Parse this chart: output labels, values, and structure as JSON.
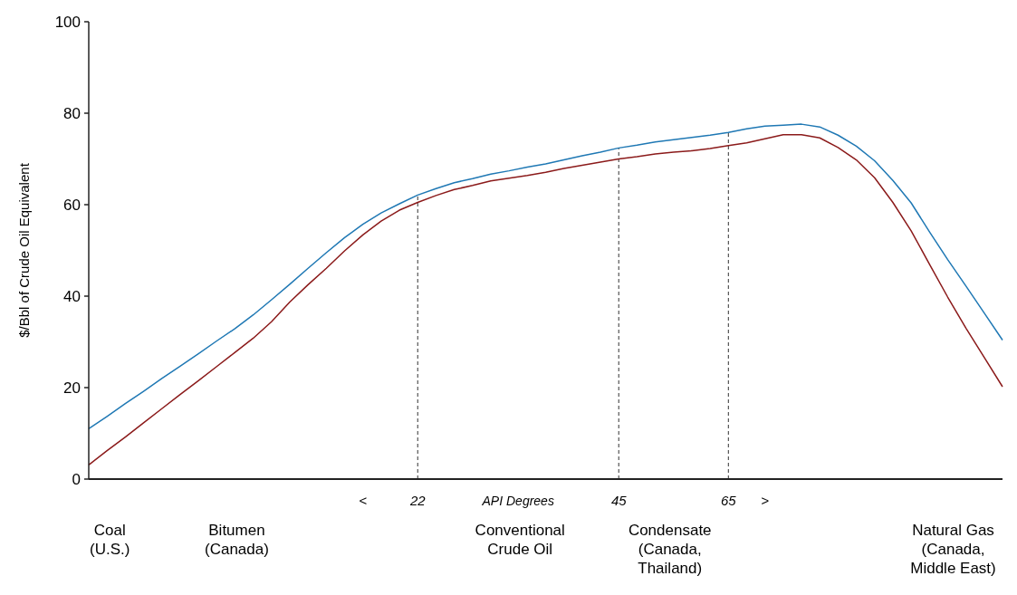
{
  "chart_data": {
    "type": "line",
    "ylabel": "$/Bbl of Crude Oil Equivalent",
    "xlabel": "API Degrees",
    "categories": [
      null,
      null,
      null,
      null,
      null,
      null,
      null,
      null,
      null,
      null,
      null,
      null,
      null,
      null,
      null,
      "<",
      null,
      null,
      "22",
      null,
      null,
      null,
      null,
      null,
      null,
      null,
      null,
      null,
      null,
      "45",
      null,
      null,
      null,
      null,
      null,
      "65",
      null,
      ">",
      null,
      null,
      null,
      null,
      null,
      null,
      null,
      null,
      null,
      null,
      null,
      null,
      null
    ],
    "ylim": [
      0,
      100
    ],
    "yticks": [
      0,
      20,
      40,
      60,
      80,
      100
    ],
    "grid": false,
    "marker": "none",
    "line_style": "solid",
    "series": [
      {
        "color": "#1f78b4",
        "values": [
          11.0,
          13.7,
          16.5,
          19.2,
          22.0,
          24.7,
          27.4,
          30.2,
          32.9,
          35.9,
          39.2,
          42.6,
          46.1,
          49.5,
          52.8,
          55.7,
          58.2,
          60.2,
          62.1,
          63.5,
          64.8,
          65.7,
          66.7,
          67.4,
          68.2,
          68.9,
          69.8,
          70.7,
          71.5,
          72.4,
          73.0,
          73.7,
          74.2,
          74.7,
          75.2,
          75.8,
          76.6,
          77.2,
          77.4,
          77.6,
          77.0,
          75.2,
          72.8,
          69.6,
          65.3,
          60.4,
          54.1,
          48.0,
          42.2,
          36.3,
          30.4
        ]
      },
      {
        "color": "#8b1a1a",
        "values": [
          3.1,
          6.2,
          9.2,
          12.3,
          15.4,
          18.5,
          21.5,
          24.6,
          27.7,
          30.8,
          34.4,
          38.7,
          42.5,
          46.1,
          49.9,
          53.4,
          56.4,
          58.8,
          60.5,
          62.0,
          63.3,
          64.2,
          65.2,
          65.8,
          66.4,
          67.1,
          67.9,
          68.6,
          69.3,
          70.0,
          70.5,
          71.1,
          71.5,
          71.8,
          72.3,
          72.9,
          73.5,
          74.4,
          75.3,
          75.3,
          74.6,
          72.5,
          69.8,
          65.9,
          60.5,
          54.3,
          47.0,
          39.8,
          33.0,
          26.6,
          20.2
        ]
      }
    ],
    "ref_lines": [
      {
        "axis": "x",
        "value": "22",
        "line_style": "dashed",
        "color": "#333333"
      },
      {
        "axis": "x",
        "value": "45",
        "line_style": "dashed",
        "color": "#333333"
      },
      {
        "axis": "x",
        "value": "65",
        "line_style": "dashed",
        "color": "#333333"
      }
    ],
    "annotations": [
      "Coal\n(U.S.)",
      "Bitumen\n(Canada)",
      "Conventional\nCrude Oil",
      "Condensate\n(Canada,\nThailand)",
      "Natural Gas\n(Canada,\nMiddle East)"
    ]
  }
}
